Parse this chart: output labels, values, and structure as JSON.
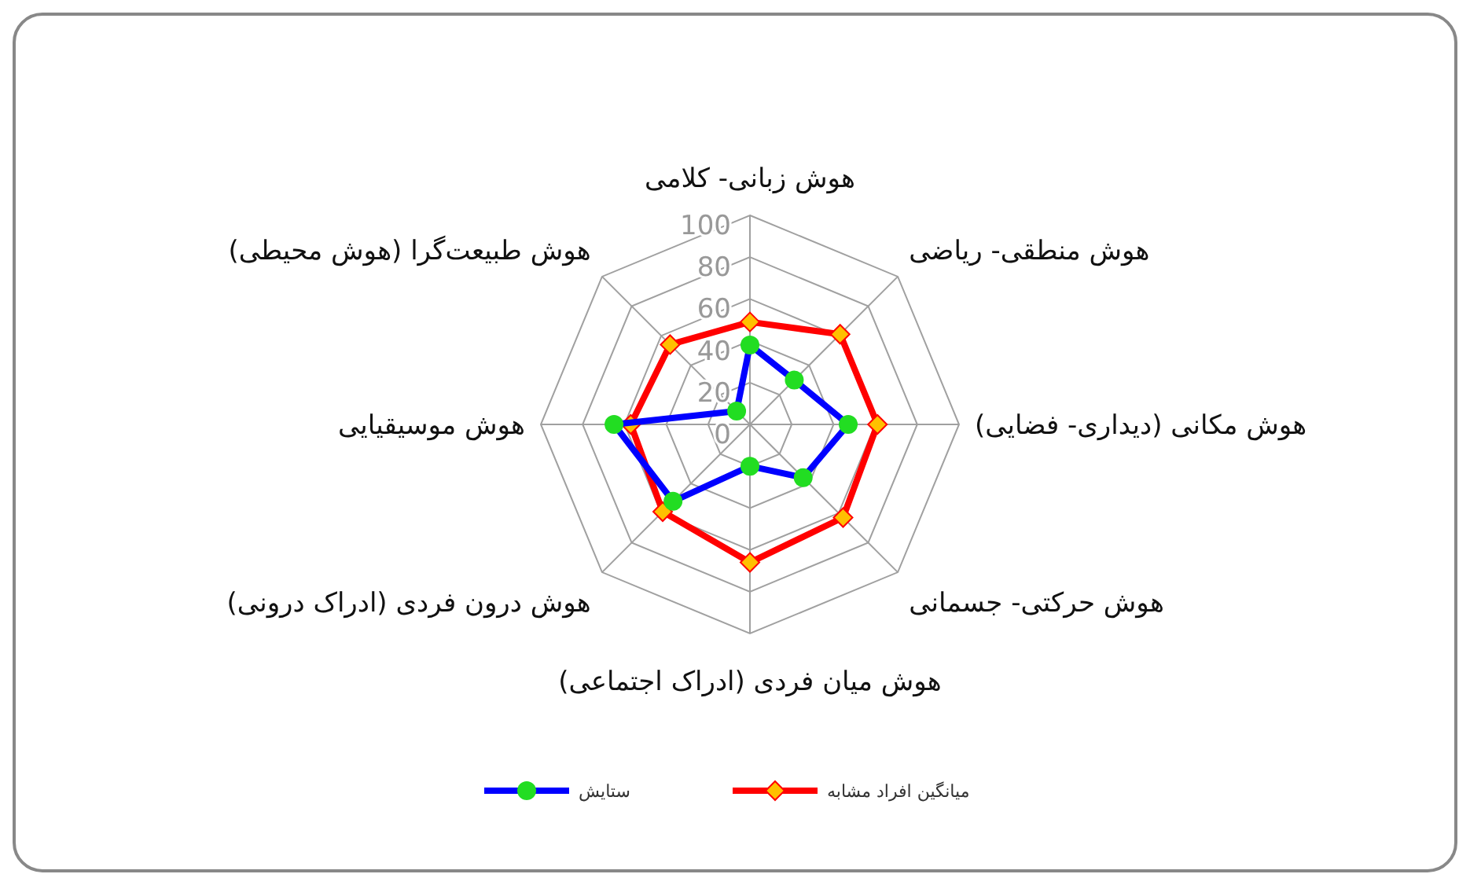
{
  "chart_data": {
    "type": "radar",
    "categories": [
      "هوش زبانی- کلامی",
      "هوش منطقی- ریاضی",
      "هوش مکانی (دیداری- فضایی)",
      "هوش حرکتی- جسمانی",
      "هوش میان فردی (ادراک اجتماعی)",
      "هوش درون فردی (ادراک درونی)",
      "هوش موسیقیایی",
      "هوش طبیعت‌گرا (هوش محیطی)"
    ],
    "series": [
      {
        "name": "ستایش",
        "color": "#0000ff",
        "colors": [
          "#22dd22",
          "#22dd22",
          "#22dd22",
          "#22dd22",
          "#22dd22",
          "#22dd22",
          "#22dd22",
          "#22dd22"
        ],
        "marker": "circle",
        "values": [
          38,
          30,
          47,
          36,
          20,
          52,
          65,
          9
        ]
      },
      {
        "name": "میانگین افراد مشابه",
        "color": "#ff0000",
        "colors": [
          "#ffc000",
          "#ffc000",
          "#ffc000",
          "#ffc000",
          "#ffc000",
          "#ffc000",
          "#ffc000",
          "#ffc000"
        ],
        "marker": "diamond",
        "values": [
          49,
          61,
          61,
          63,
          66,
          59,
          57,
          54
        ]
      }
    ],
    "ylim": [
      0,
      100
    ],
    "yticks": [
      0,
      20,
      40,
      60,
      80,
      100
    ],
    "grid": true,
    "legend": "bottom"
  }
}
